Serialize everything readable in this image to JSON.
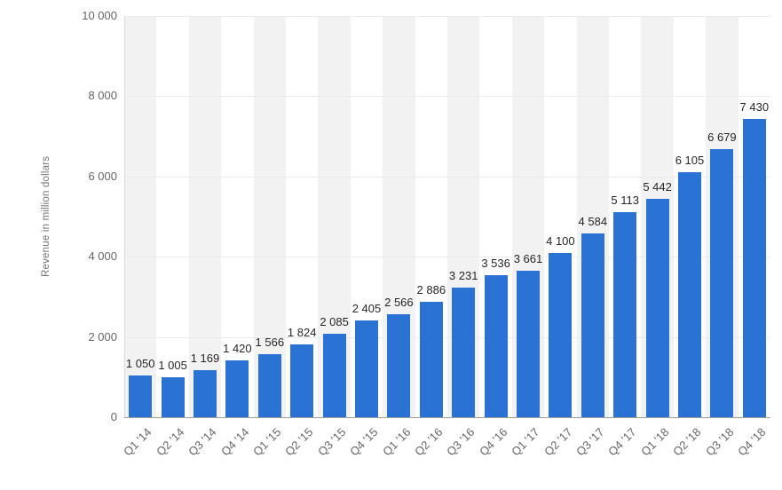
{
  "chart_data": {
    "type": "bar",
    "title": "",
    "xlabel": "",
    "ylabel": "Revenue in million dollars",
    "categories": [
      "Q1 '14",
      "Q2 '14",
      "Q3 '14",
      "Q4 '14",
      "Q1 '15",
      "Q2 '15",
      "Q3 '15",
      "Q4 '15",
      "Q1 '16",
      "Q2 '16",
      "Q3 '16",
      "Q4 '16",
      "Q1 '17",
      "Q2 '17",
      "Q3 '17",
      "Q4 '17",
      "Q1 '18",
      "Q2 '18",
      "Q3 '18",
      "Q4 '18"
    ],
    "values": [
      1050,
      1005,
      1169,
      1420,
      1566,
      1824,
      2085,
      2405,
      2566,
      2886,
      3231,
      3536,
      3661,
      4100,
      4584,
      5113,
      5442,
      6105,
      6679,
      7430
    ],
    "value_labels": [
      "1 050",
      "1 005",
      "1 169",
      "1 420",
      "1 566",
      "1 824",
      "2 085",
      "2 405",
      "2 566",
      "2 886",
      "3 231",
      "3 536",
      "3 661",
      "4 100",
      "4 584",
      "5 113",
      "5 442",
      "6 105",
      "6 679",
      "7 430"
    ],
    "yticks": [
      {
        "value": 0,
        "label": "0"
      },
      {
        "value": 2000,
        "label": "2 000"
      },
      {
        "value": 4000,
        "label": "4 000"
      },
      {
        "value": 6000,
        "label": "6 000"
      },
      {
        "value": 8000,
        "label": "8 000"
      },
      {
        "value": 10000,
        "label": "10 000"
      }
    ],
    "ylim": [
      0,
      10000
    ],
    "grid": true,
    "legend_position": "none",
    "bar_color": "#2a72d4",
    "stripe_color": "#f2f2f2",
    "axis_text_color": "#666666"
  }
}
